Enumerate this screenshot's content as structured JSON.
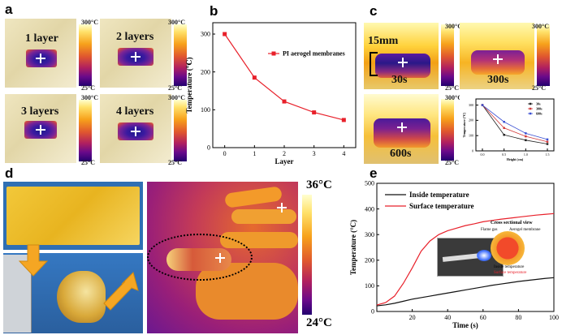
{
  "panels": {
    "a": {
      "label": "a",
      "images": [
        {
          "label": "1 layer"
        },
        {
          "label": "2 layers"
        },
        {
          "label": "3 layers"
        },
        {
          "label": "4 layers"
        }
      ],
      "scale_max": "300°C",
      "scale_min": "25°C"
    },
    "b": {
      "label": "b"
    },
    "c": {
      "label": "c",
      "height_label": "15mm",
      "images": [
        {
          "label": "30s"
        },
        {
          "label": "300s"
        },
        {
          "label": "600s"
        }
      ],
      "scale_max": "300°C",
      "scale_min": "25°C"
    },
    "d": {
      "label": "d",
      "scale_max": "36°C",
      "scale_min": "24°C"
    },
    "e": {
      "label": "e",
      "inset": {
        "title": "Cross sectional view",
        "flame_gas": "Flame gas",
        "aerogel": "Aerogel membrane",
        "inside": "Inside temperature",
        "surface": "Surface temperature"
      }
    }
  },
  "chart_data": [
    {
      "id": "b",
      "type": "line",
      "title": "",
      "xlabel": "Layer",
      "ylabel": "Temperature (℃)",
      "x": [
        0,
        1,
        2,
        3,
        4
      ],
      "series": [
        {
          "name": "PI aerogel membranes",
          "color": "#e8202a",
          "values": [
            300,
            185,
            122,
            93,
            73
          ]
        }
      ],
      "xticks": [
        "0",
        "1",
        "2",
        "3",
        "4"
      ],
      "yticks": [
        "0",
        "100",
        "200",
        "300"
      ],
      "xlim": [
        -0.4,
        4.4
      ],
      "ylim": [
        0,
        330
      ],
      "legend": "top-right"
    },
    {
      "id": "c_inset",
      "type": "line",
      "xlabel": "Height (cm)",
      "ylabel": "Temperature (℃)",
      "x": [
        0,
        0.5,
        1.0,
        1.5
      ],
      "series": [
        {
          "name": "30s",
          "color": "#222222",
          "values": [
            300,
            105,
            70,
            45
          ]
        },
        {
          "name": "300s",
          "color": "#d23a3a",
          "values": [
            300,
            150,
            95,
            60
          ]
        },
        {
          "name": "600s",
          "color": "#3a4fd2",
          "values": [
            300,
            190,
            115,
            75
          ]
        }
      ],
      "xticks": [
        "0.0",
        "0.5",
        "1.0",
        "1.5"
      ],
      "yticks": [
        "0",
        "100",
        "200",
        "300"
      ],
      "xlim": [
        -0.15,
        1.65
      ],
      "ylim": [
        0,
        340
      ],
      "legend": "top-right"
    },
    {
      "id": "e",
      "type": "line",
      "xlabel": "Time (s)",
      "ylabel": "Temperature (°C)",
      "x": [
        0,
        5,
        10,
        15,
        20,
        25,
        30,
        35,
        40,
        45,
        50,
        55,
        60,
        65,
        70,
        75,
        80,
        85,
        90,
        95,
        100
      ],
      "series": [
        {
          "name": "Inside temperature",
          "color": "#111111",
          "values": [
            22,
            26,
            32,
            40,
            48,
            54,
            60,
            66,
            72,
            78,
            84,
            90,
            96,
            102,
            107,
            112,
            117,
            121,
            125,
            129,
            132
          ]
        },
        {
          "name": "Surface temperature",
          "color": "#e8202a",
          "values": [
            25,
            35,
            60,
            110,
            170,
            235,
            275,
            300,
            315,
            325,
            335,
            342,
            350,
            355,
            360,
            364,
            368,
            372,
            376,
            379,
            382
          ]
        }
      ],
      "xticks": [
        "20",
        "40",
        "60",
        "80",
        "100"
      ],
      "yticks": [
        "0",
        "100",
        "200",
        "300",
        "400",
        "500"
      ],
      "xlim": [
        0,
        100
      ],
      "ylim": [
        0,
        500
      ],
      "legend": "top-left"
    }
  ]
}
